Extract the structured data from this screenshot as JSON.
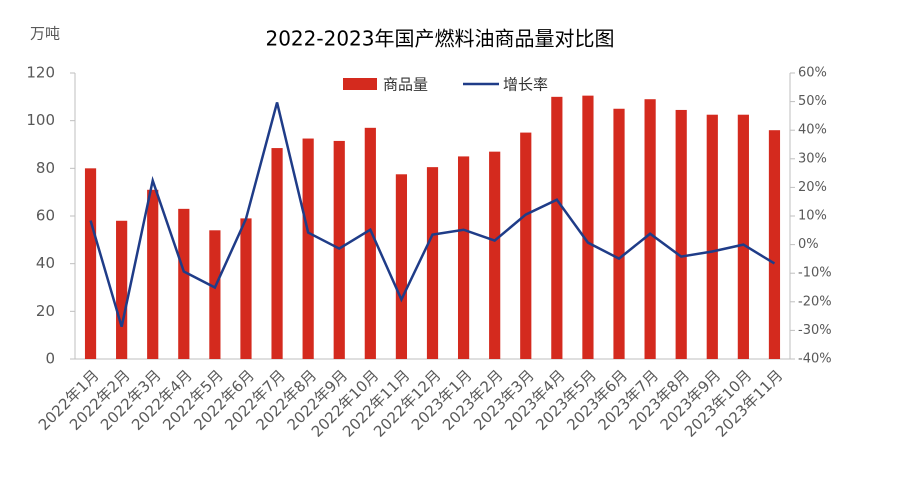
{
  "chart_data": {
    "type": "bar+line",
    "title": "2022-2023年国产燃料油商品量对比图",
    "y_label": "万吨",
    "categories": [
      "2022年1月",
      "2022年2月",
      "2022年3月",
      "2022年4月",
      "2022年5月",
      "2022年6月",
      "2022年7月",
      "2022年8月",
      "2022年9月",
      "2022年10月",
      "2022年11月",
      "2022年12月",
      "2023年1月",
      "2023年2月",
      "2023年3月",
      "2023年4月",
      "2023年5月",
      "2023年6月",
      "2023年7月",
      "2023年8月",
      "2023年9月",
      "2023年10月",
      "2023年11月"
    ],
    "series": [
      {
        "name": "商品量",
        "type": "bar",
        "color": "#d42a1e",
        "values": [
          80,
          58,
          71,
          63,
          54,
          59,
          88.5,
          92.5,
          91.5,
          97,
          77.5,
          80.5,
          85,
          87,
          95,
          110,
          110.5,
          105,
          109,
          104.5,
          102.5,
          102.5,
          96
        ]
      },
      {
        "name": "增长率",
        "type": "line",
        "axis": "y2",
        "color": "#1f3c88",
        "values": [
          8.4,
          -28.7,
          22.4,
          -9.4,
          -15,
          9,
          49.7,
          4.2,
          -1.4,
          5.2,
          -19.2,
          3.5,
          5.2,
          1.4,
          10.5,
          15.7,
          0.7,
          -4.9,
          3.8,
          -4.2,
          -2.4,
          0,
          -6.6
        ]
      }
    ],
    "ylim": [
      0,
      120
    ],
    "yticks": [
      0,
      20,
      40,
      60,
      80,
      100,
      120
    ],
    "y2lim": [
      -40,
      60
    ],
    "y2ticks": [
      {
        "value": -40,
        "label": "-40%"
      },
      {
        "value": -30,
        "label": "-30%"
      },
      {
        "value": -20,
        "label": "-20%"
      },
      {
        "value": -10,
        "label": "-10%"
      },
      {
        "value": 0,
        "label": "0%"
      },
      {
        "value": 10,
        "label": "10%"
      },
      {
        "value": 20,
        "label": "20%"
      },
      {
        "value": 30,
        "label": "30%"
      },
      {
        "value": 40,
        "label": "40%"
      },
      {
        "value": 50,
        "label": "50%"
      },
      {
        "value": 60,
        "label": "60%"
      }
    ],
    "legend": "top"
  }
}
